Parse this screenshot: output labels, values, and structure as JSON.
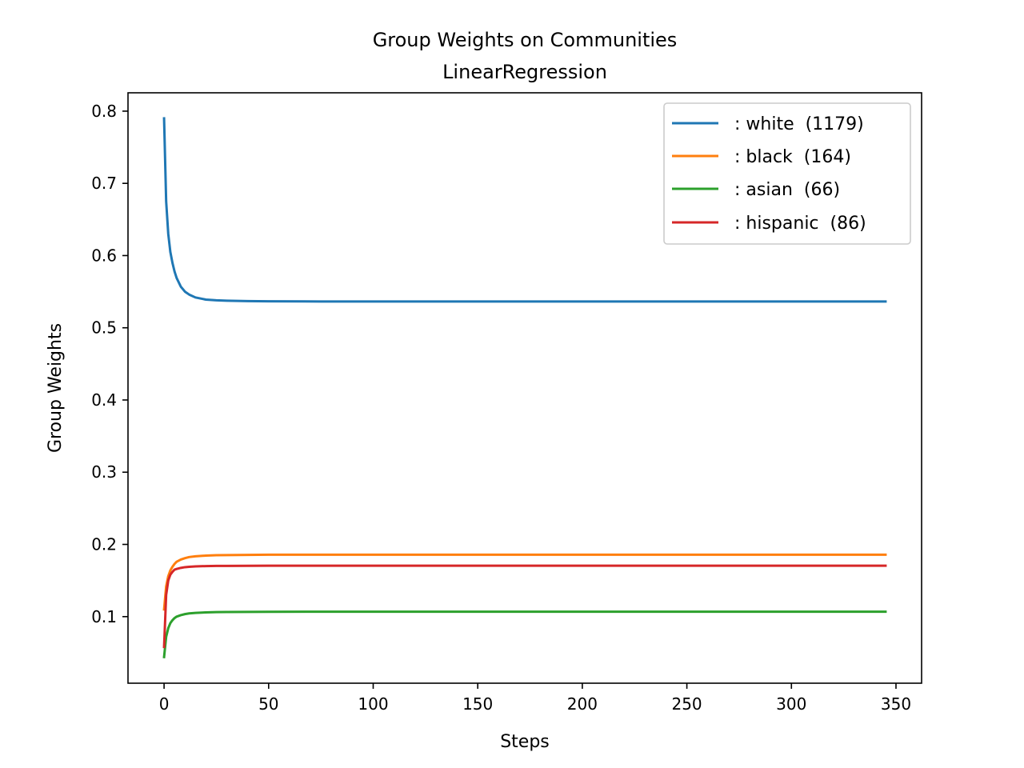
{
  "chart_data": {
    "type": "line",
    "title": "Group Weights on Communities",
    "subtitle": "LinearRegression",
    "xlabel": "Steps",
    "ylabel": "Group Weights",
    "xlim": [
      -17.25,
      362.25
    ],
    "ylim": [
      0.0078,
      0.8254
    ],
    "xticks": [
      0,
      50,
      100,
      150,
      200,
      250,
      300,
      350
    ],
    "yticks": [
      0.1,
      0.2,
      0.3,
      0.4,
      0.5,
      0.6,
      0.7,
      0.8
    ],
    "grid": false,
    "legend_position": "top-right",
    "series": [
      {
        "name": ": white  (1179)",
        "color": "#1f77b4",
        "x": [
          0,
          1,
          2,
          3,
          4,
          5,
          6,
          8,
          10,
          12,
          15,
          20,
          25,
          30,
          40,
          50,
          75,
          100,
          150,
          200,
          250,
          300,
          345
        ],
        "y": [
          0.79,
          0.675,
          0.63,
          0.605,
          0.59,
          0.578,
          0.569,
          0.557,
          0.55,
          0.546,
          0.542,
          0.539,
          0.538,
          0.5375,
          0.537,
          0.5366,
          0.5364,
          0.5364,
          0.5364,
          0.5364,
          0.5364,
          0.5364,
          0.5364
        ]
      },
      {
        "name": ": black  (164)",
        "color": "#ff7f0e",
        "x": [
          0,
          1,
          2,
          3,
          4,
          5,
          6,
          8,
          10,
          12,
          15,
          20,
          25,
          30,
          40,
          50,
          75,
          100,
          150,
          200,
          250,
          300,
          345
        ],
        "y": [
          0.11,
          0.142,
          0.156,
          0.164,
          0.169,
          0.173,
          0.176,
          0.179,
          0.181,
          0.1825,
          0.1835,
          0.1845,
          0.185,
          0.1852,
          0.1855,
          0.1857,
          0.1858,
          0.1858,
          0.1858,
          0.1858,
          0.1858,
          0.1858,
          0.1858
        ]
      },
      {
        "name": ": asian  (66)",
        "color": "#2ca02c",
        "x": [
          0,
          1,
          2,
          3,
          4,
          5,
          6,
          8,
          10,
          12,
          15,
          20,
          25,
          30,
          40,
          50,
          75,
          100,
          150,
          200,
          250,
          300,
          345
        ],
        "y": [
          0.044,
          0.072,
          0.084,
          0.091,
          0.095,
          0.098,
          0.1,
          0.102,
          0.1035,
          0.1045,
          0.1052,
          0.1058,
          0.1062,
          0.1064,
          0.1066,
          0.1067,
          0.1068,
          0.1068,
          0.1068,
          0.1068,
          0.1068,
          0.1068,
          0.1068
        ]
      },
      {
        "name": ": hispanic  (86)",
        "color": "#d62728",
        "x": [
          0,
          1,
          2,
          3,
          4,
          5,
          6,
          8,
          10,
          12,
          15,
          20,
          25,
          30,
          40,
          50,
          75,
          100,
          150,
          200,
          250,
          300,
          345
        ],
        "y": [
          0.058,
          0.13,
          0.15,
          0.158,
          0.162,
          0.165,
          0.166,
          0.1675,
          0.1685,
          0.169,
          0.1695,
          0.17,
          0.1702,
          0.1703,
          0.1704,
          0.1705,
          0.1705,
          0.1705,
          0.1705,
          0.1705,
          0.1705,
          0.1705,
          0.1705
        ]
      }
    ]
  }
}
